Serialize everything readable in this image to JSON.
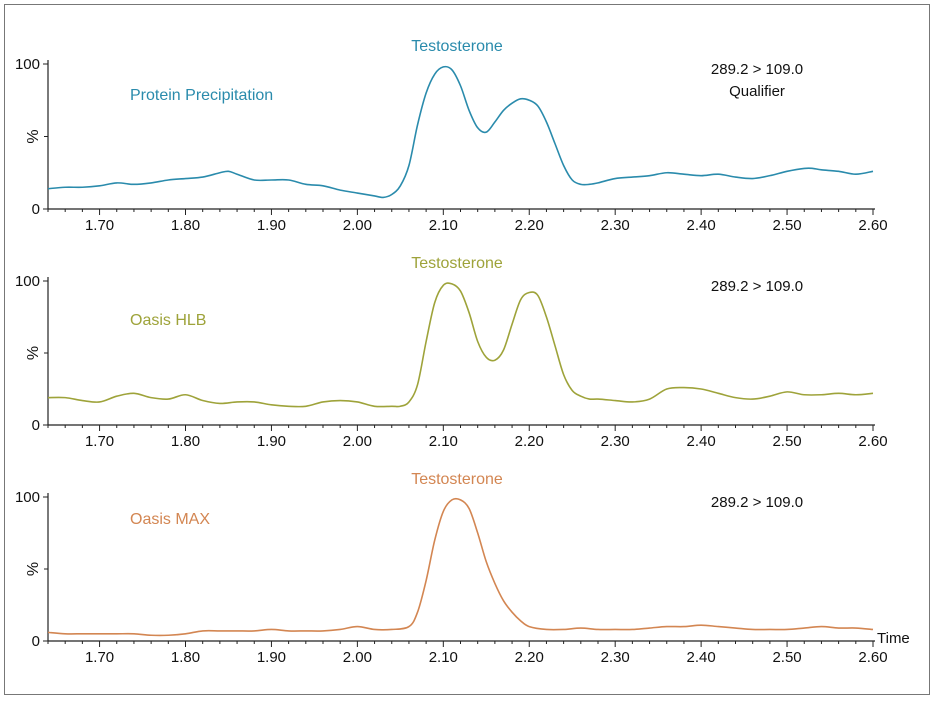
{
  "chart_data": [
    {
      "type": "line",
      "title": "Testosterone",
      "series_label": "Protein Precipitation",
      "transition": "289.2 > 109.0",
      "note": "Qualifier",
      "xlabel": "",
      "ylabel": "%",
      "xlim": [
        1.64,
        2.6
      ],
      "ylim": [
        0,
        100
      ],
      "yticks": [
        "0",
        "100"
      ],
      "xticks": [
        "1.70",
        "1.80",
        "1.90",
        "2.00",
        "2.10",
        "2.20",
        "2.30",
        "2.40",
        "2.50",
        "2.60"
      ],
      "color": "#2a8bac",
      "x": [
        1.64,
        1.66,
        1.68,
        1.7,
        1.72,
        1.74,
        1.76,
        1.78,
        1.8,
        1.82,
        1.84,
        1.85,
        1.86,
        1.88,
        1.9,
        1.92,
        1.94,
        1.96,
        1.98,
        2.0,
        2.02,
        2.03,
        2.04,
        2.05,
        2.06,
        2.07,
        2.08,
        2.09,
        2.1,
        2.11,
        2.12,
        2.13,
        2.14,
        2.15,
        2.16,
        2.17,
        2.18,
        2.19,
        2.2,
        2.21,
        2.22,
        2.23,
        2.24,
        2.25,
        2.26,
        2.27,
        2.28,
        2.3,
        2.32,
        2.34,
        2.36,
        2.38,
        2.4,
        2.42,
        2.44,
        2.46,
        2.48,
        2.5,
        2.52,
        2.53,
        2.54,
        2.56,
        2.58,
        2.6
      ],
      "values": [
        14,
        15,
        15,
        16,
        18,
        17,
        18,
        20,
        21,
        22,
        25,
        26,
        24,
        20,
        20,
        20,
        17,
        16,
        13,
        11,
        9,
        8,
        10,
        16,
        30,
        58,
        80,
        93,
        98,
        96,
        85,
        68,
        56,
        53,
        60,
        68,
        73,
        76,
        75,
        71,
        60,
        45,
        30,
        20,
        17,
        17,
        18,
        21,
        22,
        23,
        25,
        24,
        23,
        24,
        22,
        21,
        23,
        26,
        28,
        28,
        27,
        26,
        24,
        26
      ]
    },
    {
      "type": "line",
      "title": "Testosterone",
      "series_label": "Oasis HLB",
      "transition": "289.2 > 109.0",
      "note": "",
      "xlabel": "",
      "ylabel": "%",
      "xlim": [
        1.64,
        2.6
      ],
      "ylim": [
        0,
        100
      ],
      "yticks": [
        "0",
        "100"
      ],
      "xticks": [
        "1.70",
        "1.80",
        "1.90",
        "2.00",
        "2.10",
        "2.20",
        "2.30",
        "2.40",
        "2.50",
        "2.60"
      ],
      "color": "#9ea33a",
      "x": [
        1.64,
        1.66,
        1.68,
        1.7,
        1.72,
        1.74,
        1.76,
        1.78,
        1.8,
        1.82,
        1.84,
        1.86,
        1.88,
        1.9,
        1.92,
        1.94,
        1.96,
        1.98,
        2.0,
        2.02,
        2.04,
        2.05,
        2.06,
        2.07,
        2.08,
        2.09,
        2.1,
        2.11,
        2.12,
        2.13,
        2.14,
        2.15,
        2.16,
        2.17,
        2.18,
        2.19,
        2.2,
        2.21,
        2.22,
        2.23,
        2.24,
        2.25,
        2.26,
        2.27,
        2.28,
        2.3,
        2.32,
        2.34,
        2.36,
        2.38,
        2.4,
        2.42,
        2.44,
        2.46,
        2.48,
        2.5,
        2.52,
        2.54,
        2.56,
        2.58,
        2.6
      ],
      "values": [
        19,
        19,
        17,
        16,
        20,
        22,
        19,
        18,
        21,
        17,
        15,
        16,
        16,
        14,
        13,
        13,
        16,
        17,
        16,
        13,
        13,
        13,
        16,
        28,
        58,
        85,
        97,
        98,
        93,
        78,
        58,
        47,
        45,
        52,
        70,
        87,
        92,
        90,
        75,
        55,
        35,
        24,
        20,
        18,
        18,
        17,
        16,
        18,
        25,
        26,
        25,
        22,
        19,
        18,
        20,
        23,
        21,
        21,
        22,
        21,
        22
      ]
    },
    {
      "type": "line",
      "title": "Testosterone",
      "series_label": "Oasis MAX",
      "transition": "289.2 > 109.0",
      "note": "",
      "xlabel": "Time",
      "ylabel": "%",
      "xlim": [
        1.64,
        2.6
      ],
      "ylim": [
        0,
        100
      ],
      "yticks": [
        "0",
        "100"
      ],
      "xticks": [
        "1.70",
        "1.80",
        "1.90",
        "2.00",
        "2.10",
        "2.20",
        "2.30",
        "2.40",
        "2.50",
        "2.60"
      ],
      "color": "#d38652",
      "x": [
        1.64,
        1.66,
        1.68,
        1.7,
        1.72,
        1.74,
        1.76,
        1.78,
        1.8,
        1.82,
        1.84,
        1.86,
        1.88,
        1.9,
        1.92,
        1.94,
        1.96,
        1.98,
        2.0,
        2.02,
        2.04,
        2.06,
        2.07,
        2.08,
        2.09,
        2.1,
        2.11,
        2.12,
        2.13,
        2.14,
        2.15,
        2.16,
        2.17,
        2.18,
        2.19,
        2.2,
        2.22,
        2.24,
        2.26,
        2.28,
        2.3,
        2.32,
        2.34,
        2.36,
        2.38,
        2.4,
        2.42,
        2.44,
        2.46,
        2.48,
        2.5,
        2.52,
        2.54,
        2.56,
        2.58,
        2.6
      ],
      "values": [
        6,
        5,
        5,
        5,
        5,
        5,
        4,
        4,
        5,
        7,
        7,
        7,
        7,
        8,
        7,
        7,
        7,
        8,
        10,
        8,
        8,
        10,
        20,
        42,
        70,
        90,
        98,
        98,
        92,
        75,
        55,
        40,
        28,
        20,
        14,
        10,
        8,
        8,
        9,
        8,
        8,
        8,
        9,
        10,
        10,
        11,
        10,
        9,
        8,
        8,
        8,
        9,
        10,
        9,
        9,
        8
      ]
    }
  ]
}
